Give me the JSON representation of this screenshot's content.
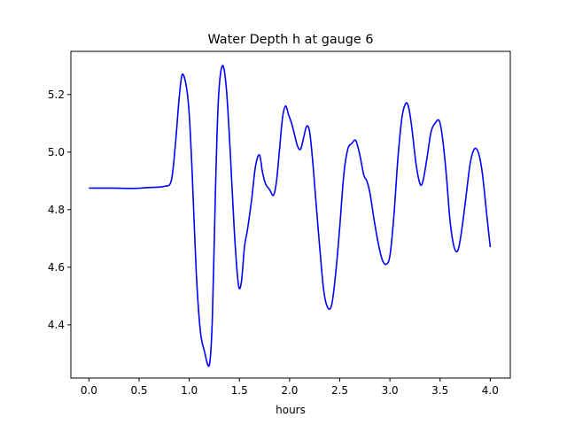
{
  "chart_data": {
    "type": "line",
    "title": "Water Depth h at gauge 6",
    "xlabel": "hours",
    "ylabel": "",
    "xlim": [
      -0.18,
      4.2
    ],
    "ylim": [
      4.215,
      5.35
    ],
    "xticks": [
      0.0,
      0.5,
      1.0,
      1.5,
      2.0,
      2.5,
      3.0,
      3.5,
      4.0
    ],
    "xtick_labels": [
      "0.0",
      "0.5",
      "1.0",
      "1.5",
      "2.0",
      "2.5",
      "3.0",
      "3.5",
      "4.0"
    ],
    "yticks": [
      4.4,
      4.6,
      4.8,
      5.0,
      5.2
    ],
    "ytick_labels": [
      "4.4",
      "4.6",
      "4.8",
      "5.0",
      "5.2"
    ],
    "grid": false,
    "series": [
      {
        "color": "#0000ff",
        "x": [
          0.0,
          0.2,
          0.45,
          0.6,
          0.75,
          0.82,
          0.86,
          0.9,
          0.93,
          0.97,
          1.0,
          1.03,
          1.07,
          1.11,
          1.15,
          1.2,
          1.23,
          1.26,
          1.29,
          1.33,
          1.37,
          1.41,
          1.45,
          1.49,
          1.52,
          1.55,
          1.58,
          1.62,
          1.66,
          1.7,
          1.73,
          1.76,
          1.8,
          1.84,
          1.87,
          1.9,
          1.93,
          1.96,
          1.99,
          2.02,
          2.05,
          2.08,
          2.11,
          2.14,
          2.17,
          2.2,
          2.23,
          2.26,
          2.3,
          2.34,
          2.38,
          2.42,
          2.46,
          2.5,
          2.54,
          2.58,
          2.62,
          2.66,
          2.7,
          2.74,
          2.77,
          2.8,
          2.84,
          2.88,
          2.92,
          2.96,
          3.0,
          3.04,
          3.08,
          3.12,
          3.16,
          3.19,
          3.22,
          3.26,
          3.3,
          3.33,
          3.37,
          3.41,
          3.45,
          3.49,
          3.52,
          3.56,
          3.6,
          3.64,
          3.68,
          3.72,
          3.76,
          3.8,
          3.84,
          3.88,
          3.92,
          3.96,
          4.0
        ],
        "y": [
          4.875,
          4.875,
          4.874,
          4.877,
          4.881,
          4.9,
          5.02,
          5.19,
          5.27,
          5.23,
          5.13,
          4.92,
          4.58,
          4.38,
          4.31,
          4.26,
          4.42,
          4.85,
          5.18,
          5.3,
          5.22,
          4.99,
          4.72,
          4.54,
          4.55,
          4.67,
          4.73,
          4.83,
          4.95,
          4.99,
          4.93,
          4.89,
          4.87,
          4.85,
          4.9,
          5.01,
          5.12,
          5.16,
          5.13,
          5.1,
          5.06,
          5.02,
          5.01,
          5.05,
          5.09,
          5.07,
          4.97,
          4.84,
          4.67,
          4.52,
          4.46,
          4.47,
          4.58,
          4.74,
          4.92,
          5.01,
          5.03,
          5.04,
          4.99,
          4.92,
          4.9,
          4.86,
          4.77,
          4.69,
          4.63,
          4.61,
          4.64,
          4.78,
          4.98,
          5.12,
          5.17,
          5.15,
          5.08,
          4.96,
          4.89,
          4.9,
          4.98,
          5.07,
          5.1,
          5.11,
          5.06,
          4.93,
          4.76,
          4.67,
          4.66,
          4.74,
          4.85,
          4.96,
          5.01,
          5.0,
          4.93,
          4.8,
          4.67
        ]
      }
    ]
  }
}
